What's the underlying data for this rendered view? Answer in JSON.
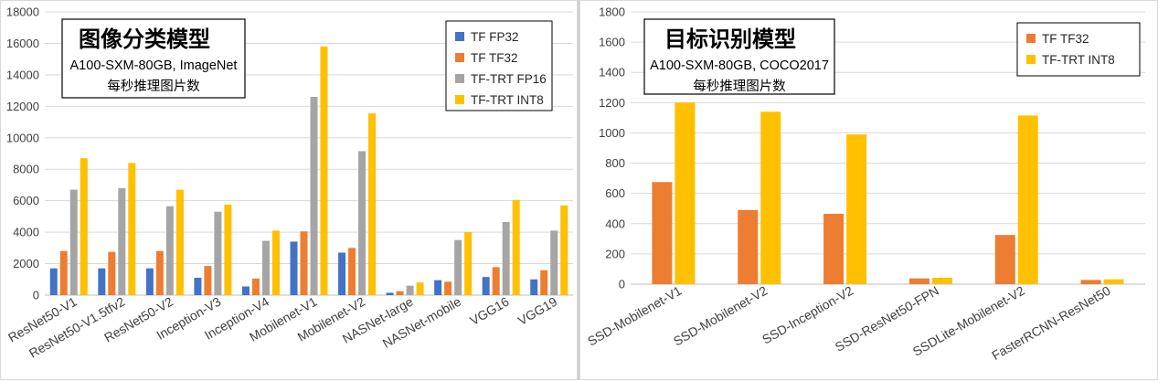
{
  "chart_data": [
    {
      "type": "bar",
      "annotation": {
        "title": "图像分类模型",
        "line1": "A100-SXM-80GB, ImageNet",
        "line2": "每秒推理图片数"
      },
      "categories": [
        "ResNet50-V1",
        "ResNet50-V1.5tfv2",
        "ResNet50-V2",
        "Inception-V3",
        "Inception-V4",
        "Mobilenet-V1",
        "Mobilenet-V2",
        "NASNet-large",
        "NASNet-mobile",
        "VGG16",
        "VGG19"
      ],
      "series": [
        {
          "name": "TF FP32",
          "color": "#4472C4",
          "values": [
            1700,
            1700,
            1700,
            1100,
            550,
            3400,
            2700,
            150,
            950,
            1150,
            1000
          ]
        },
        {
          "name": "TF TF32",
          "color": "#ED7D31",
          "values": [
            2800,
            2750,
            2800,
            1850,
            1050,
            4050,
            3000,
            250,
            850,
            1780,
            1580
          ]
        },
        {
          "name": "TF-TRT FP16",
          "color": "#A5A5A5",
          "values": [
            6700,
            6800,
            5650,
            5300,
            3450,
            12600,
            9150,
            600,
            3500,
            4650,
            4100
          ]
        },
        {
          "name": "TF-TRT INT8",
          "color": "#FFC000",
          "values": [
            8700,
            8400,
            6700,
            5750,
            4100,
            15800,
            11550,
            800,
            4000,
            6050,
            5700
          ]
        }
      ],
      "yticks": [
        "0",
        "2000",
        "4000",
        "6000",
        "8000",
        "10000",
        "12000",
        "14000",
        "16000",
        "18000"
      ],
      "ylim": [
        0,
        18000
      ],
      "grid": true,
      "legend_position": "top-right"
    },
    {
      "type": "bar",
      "annotation": {
        "title": "目标识别模型",
        "line1": "A100-SXM-80GB, COCO2017",
        "line2": "每秒推理图片数"
      },
      "categories": [
        "SSD-Mobilenet-V1",
        "SSD-Mobilenet-V2",
        "SSD-Inception-V2",
        "SSD-ResNet50-FPN",
        "SSDLite-Mobilenet-V2",
        "FasterRCNN-ResNet50"
      ],
      "series": [
        {
          "name": "TF TF32",
          "color": "#ED7D31",
          "values": [
            675,
            490,
            465,
            38,
            325,
            28
          ]
        },
        {
          "name": "TF-TRT INT8",
          "color": "#FFC000",
          "values": [
            1200,
            1140,
            990,
            42,
            1115,
            32
          ]
        }
      ],
      "yticks": [
        "0",
        "200",
        "400",
        "600",
        "800",
        "1000",
        "1200",
        "1400",
        "1600",
        "1800"
      ],
      "ylim": [
        0,
        1800
      ],
      "grid": true,
      "legend_position": "top-right"
    }
  ]
}
